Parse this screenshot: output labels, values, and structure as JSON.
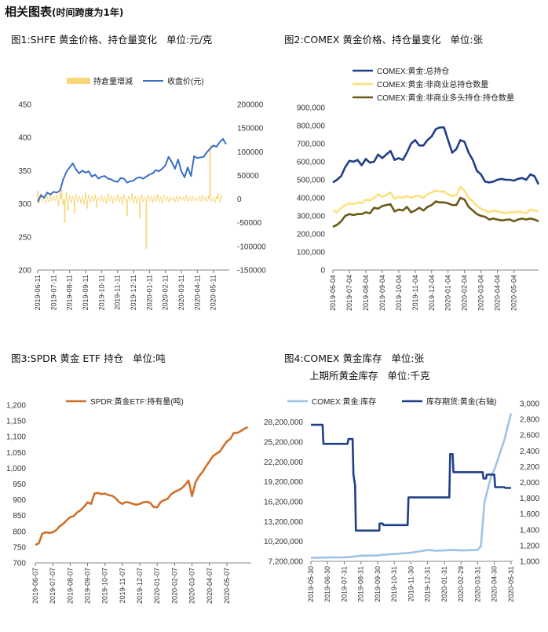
{
  "page": {
    "title": "相关图表",
    "title_note": "(时间跨度为1年)"
  },
  "colors": {
    "blue": "#3A6FC4",
    "navy": "#1F3F88",
    "gold": "#F8D77A",
    "yellow": "#FCE27C",
    "olive": "#6B5A16",
    "orange": "#D0702A",
    "lightblue": "#9DC3E6"
  },
  "captions": {
    "c1": "图1:SHFE 黄金价格、持仓量变化   单位:元/克",
    "c2": "图2:COMEX 黄金价格、持仓量变化   单位:张",
    "c3": "图3:SPDR 黄金 ETF 持仓   单位:吨",
    "c4a": "图4:COMEX 黄金库存   单位:张",
    "c4b": "上期所黄金库存   单位:千克"
  },
  "chart_data": [
    {
      "id": "shfe",
      "type": "line",
      "legend": [
        "持倉量增減",
        "收盘价(元)"
      ],
      "x_ticks": [
        "2019-06-11",
        "2019-07-11",
        "2019-08-11",
        "2019-09-11",
        "2019-10-11",
        "2019-11-11",
        "2019-12-11",
        "2020-01-11",
        "2020-02-11",
        "2020-03-11",
        "2020-04-11",
        "2020-05-11"
      ],
      "y_left_ticks": [
        "200",
        "250",
        "300",
        "350",
        "400",
        "450"
      ],
      "y_right_ticks": [
        "-150000",
        "-100000",
        "-50000",
        "0",
        "50000",
        "100000",
        "150000",
        "200000"
      ],
      "ylim_left": [
        200,
        450
      ],
      "ylim_right": [
        -150000,
        200000
      ],
      "x_range": [
        0,
        12
      ],
      "bars_x": [
        0.0,
        0.1,
        0.2,
        0.3,
        0.4,
        0.5,
        0.6,
        0.7,
        0.8,
        0.9,
        1.0,
        1.1,
        1.2,
        1.3,
        1.4,
        1.5,
        1.6,
        1.7,
        1.8,
        1.9,
        2.0,
        2.1,
        2.2,
        2.3,
        2.4,
        2.5,
        2.6,
        2.7,
        2.8,
        2.9,
        3.0,
        3.1,
        3.2,
        3.3,
        3.4,
        3.5,
        3.6,
        3.7,
        3.8,
        3.9,
        4.0,
        4.1,
        4.2,
        4.3,
        4.4,
        4.5,
        4.6,
        4.7,
        4.8,
        4.9,
        5.0,
        5.1,
        5.2,
        5.3,
        5.4,
        5.5,
        5.6,
        5.7,
        5.8,
        5.9,
        6.0,
        6.1,
        6.2,
        6.3,
        6.4,
        6.5,
        6.6,
        6.7,
        6.8,
        6.9,
        7.0,
        7.1,
        7.2,
        7.3,
        7.4,
        7.5,
        7.6,
        7.7,
        7.8,
        7.9,
        8.0,
        8.1,
        8.2,
        8.3,
        8.4,
        8.5,
        8.6,
        8.7,
        8.8,
        8.9,
        9.0,
        9.1,
        9.2,
        9.3,
        9.4,
        9.5,
        9.6,
        9.7,
        9.8,
        9.9,
        10.0,
        10.1,
        10.2,
        10.3,
        10.4,
        10.5,
        10.6,
        10.7,
        10.8,
        10.9,
        11.0,
        11.1,
        11.2,
        11.3,
        11.4,
        11.5,
        11.6,
        11.7
      ],
      "bars_values": [
        18000,
        -10000,
        12000,
        -5000,
        8000,
        -8000,
        5000,
        -6000,
        10000,
        -4000,
        6000,
        -3000,
        9000,
        -15000,
        12000,
        20000,
        -12000,
        -50000,
        15000,
        -25000,
        8000,
        -8000,
        6000,
        -30000,
        10000,
        -6000,
        7000,
        -9000,
        5000,
        -12000,
        14000,
        -20000,
        9000,
        -7000,
        6000,
        -5000,
        10000,
        -18000,
        4000,
        -4000,
        8000,
        -6000,
        5000,
        -9000,
        12000,
        -5000,
        7000,
        -10000,
        6000,
        -4000,
        9000,
        -7000,
        5000,
        -12000,
        10000,
        -3000,
        -35000,
        6000,
        -5000,
        12000,
        -8000,
        7000,
        -10000,
        5000,
        -40000,
        9000,
        -6000,
        4000,
        -105000,
        8000,
        -4000,
        6000,
        -8000,
        7000,
        -5000,
        10000,
        -6000,
        5000,
        -9000,
        8000,
        -4000,
        6000,
        -7000,
        5000,
        -3000,
        4000,
        -6000,
        7000,
        -5000,
        6000,
        -3000,
        5000,
        -4000,
        8000,
        -6000,
        5000,
        -5000,
        7000,
        -4000,
        4000,
        -3000,
        6000,
        -5000,
        8000,
        -4000,
        5000,
        -6000,
        7000,
        115000,
        -5000,
        4000,
        -8000,
        6000,
        12000,
        -6000,
        10000
      ],
      "line_x": [
        0.0,
        0.2,
        0.4,
        0.6,
        0.8,
        1.0,
        1.2,
        1.4,
        1.6,
        1.8,
        2.0,
        2.2,
        2.4,
        2.6,
        2.8,
        3.0,
        3.2,
        3.4,
        3.6,
        3.8,
        4.0,
        4.2,
        4.4,
        4.6,
        4.8,
        5.0,
        5.2,
        5.4,
        5.6,
        5.8,
        6.0,
        6.2,
        6.4,
        6.6,
        6.8,
        7.0,
        7.2,
        7.4,
        7.6,
        7.8,
        8.0,
        8.2,
        8.4,
        8.6,
        8.8,
        9.0,
        9.2,
        9.4,
        9.6,
        9.8,
        10.0,
        10.2,
        10.4,
        10.6,
        10.8,
        11.0,
        11.2,
        11.4,
        11.6,
        11.8
      ],
      "line_y": [
        303,
        313,
        309,
        317,
        314,
        318,
        317,
        320,
        337,
        348,
        355,
        361,
        352,
        346,
        350,
        347,
        349,
        341,
        344,
        338,
        341,
        342,
        338,
        337,
        334,
        333,
        339,
        338,
        332,
        334,
        335,
        339,
        340,
        338,
        341,
        344,
        346,
        351,
        349,
        353,
        358,
        371,
        363,
        353,
        367,
        349,
        340,
        355,
        342,
        372,
        369,
        370,
        371,
        378,
        383,
        388,
        386,
        393,
        398,
        390
      ]
    },
    {
      "id": "comex",
      "type": "line",
      "legend": [
        "COMEX:黄金:总持仓",
        "COMEX:黄金:非商业总持仓数量",
        "COMEX:黄金:非商业多头持仓:持仓数量"
      ],
      "x_ticks": [
        "2019-06-04",
        "2019-07-04",
        "2019-08-04",
        "2019-09-04",
        "2019-10-04",
        "2019-11-04",
        "2019-12-04",
        "2020-01-04",
        "2020-02-04",
        "2020-03-04",
        "2020-04-04",
        "2020-05-04"
      ],
      "y_ticks": [
        "0",
        "100,000",
        "200,000",
        "300,000",
        "400,000",
        "500,000",
        "600,000",
        "700,000",
        "800,000",
        "900,000"
      ],
      "ylim": [
        0,
        900000
      ],
      "x_range": [
        0,
        12.5
      ],
      "x": [
        0.0,
        0.25,
        0.5,
        0.75,
        1.0,
        1.25,
        1.5,
        1.75,
        2.0,
        2.25,
        2.5,
        2.75,
        3.0,
        3.25,
        3.5,
        3.75,
        4.0,
        4.25,
        4.5,
        4.75,
        5.0,
        5.25,
        5.5,
        5.75,
        6.0,
        6.25,
        6.5,
        6.75,
        7.0,
        7.25,
        7.5,
        7.75,
        8.0,
        8.25,
        8.5,
        8.75,
        9.0,
        9.25,
        9.5,
        9.75,
        10.0,
        10.25,
        10.5,
        10.75,
        11.0,
        11.25,
        11.5,
        11.75,
        12.0,
        12.25,
        12.5
      ],
      "series": [
        {
          "name": "COMEX:黄金:总持仓",
          "values": [
            485000,
            500000,
            520000,
            570000,
            605000,
            600000,
            610000,
            580000,
            615000,
            595000,
            600000,
            640000,
            620000,
            640000,
            660000,
            610000,
            620000,
            610000,
            650000,
            700000,
            720000,
            690000,
            690000,
            720000,
            740000,
            780000,
            790000,
            790000,
            720000,
            650000,
            670000,
            720000,
            710000,
            650000,
            610000,
            550000,
            530000,
            490000,
            485000,
            490000,
            500000,
            505000,
            500000,
            500000,
            495000,
            505000,
            510000,
            500000,
            530000,
            520000,
            475000
          ]
        },
        {
          "name": "COMEX:黄金:非商业总持仓数量",
          "values": [
            330000,
            320000,
            345000,
            360000,
            370000,
            365000,
            375000,
            370000,
            390000,
            385000,
            400000,
            420000,
            405000,
            415000,
            430000,
            395000,
            405000,
            400000,
            410000,
            400000,
            410000,
            410000,
            400000,
            420000,
            430000,
            440000,
            435000,
            435000,
            420000,
            410000,
            415000,
            460000,
            440000,
            400000,
            380000,
            355000,
            340000,
            330000,
            320000,
            330000,
            325000,
            320000,
            315000,
            320000,
            320000,
            325000,
            320000,
            315000,
            335000,
            330000,
            325000
          ]
        },
        {
          "name": "COMEX:黄金:非商业多头持仓:持仓数量",
          "values": [
            240000,
            250000,
            270000,
            300000,
            310000,
            305000,
            310000,
            310000,
            320000,
            315000,
            345000,
            340000,
            355000,
            360000,
            365000,
            325000,
            335000,
            330000,
            350000,
            320000,
            330000,
            345000,
            330000,
            350000,
            360000,
            380000,
            375000,
            375000,
            370000,
            360000,
            360000,
            400000,
            390000,
            350000,
            330000,
            310000,
            300000,
            295000,
            280000,
            285000,
            280000,
            275000,
            278000,
            280000,
            270000,
            280000,
            285000,
            280000,
            285000,
            280000,
            270000
          ]
        }
      ]
    },
    {
      "id": "spdr",
      "type": "line",
      "legend": [
        "SPDR:黄金ETF:持有量(吨)"
      ],
      "x_ticks": [
        "2019-06-07",
        "2019-07-07",
        "2019-08-07",
        "2019-09-07",
        "2019-10-07",
        "2019-11-07",
        "2019-12-07",
        "2020-01-07",
        "2020-02-07",
        "2020-03-07",
        "2020-04-07",
        "2020-05-07"
      ],
      "y_ticks": [
        "700",
        "750",
        "800",
        "850",
        "900",
        "950",
        "1,000",
        "1,050",
        "1,100",
        "1,150",
        "1,200"
      ],
      "ylim": [
        700,
        1200
      ],
      "x_range": [
        0,
        12.4
      ],
      "x": [
        0.0,
        0.2,
        0.4,
        0.6,
        0.8,
        1.0,
        1.2,
        1.4,
        1.6,
        1.8,
        2.0,
        2.2,
        2.4,
        2.6,
        2.8,
        3.0,
        3.2,
        3.4,
        3.6,
        3.8,
        4.0,
        4.2,
        4.4,
        4.6,
        4.8,
        5.0,
        5.2,
        5.4,
        5.6,
        5.8,
        6.0,
        6.2,
        6.4,
        6.6,
        6.8,
        7.0,
        7.2,
        7.4,
        7.6,
        7.8,
        8.0,
        8.2,
        8.4,
        8.6,
        8.8,
        9.0,
        9.2,
        9.4,
        9.6,
        9.8,
        10.0,
        10.2,
        10.4,
        10.6,
        10.8,
        11.0,
        11.2,
        11.4,
        11.6,
        11.8,
        12.0,
        12.2
      ],
      "values": [
        757,
        762,
        793,
        797,
        795,
        797,
        804,
        816,
        824,
        835,
        845,
        848,
        860,
        867,
        878,
        892,
        887,
        920,
        922,
        918,
        920,
        915,
        913,
        906,
        893,
        887,
        893,
        891,
        887,
        884,
        887,
        892,
        894,
        890,
        877,
        876,
        893,
        899,
        903,
        918,
        925,
        930,
        936,
        947,
        961,
        912,
        955,
        975,
        988,
        1006,
        1022,
        1038,
        1046,
        1053,
        1070,
        1085,
        1093,
        1112,
        1112,
        1118,
        1125,
        1130
      ]
    },
    {
      "id": "inventory",
      "type": "line",
      "legend": [
        "COMEX:黄金:库存",
        "库存期货:黄金(右轴)"
      ],
      "x_ticks": [
        "2019-05-30",
        "2019-06-30",
        "2019-07-31",
        "2019-08-31",
        "2019-09-30",
        "2019-10-31",
        "2019-11-30",
        "2019-12-31",
        "2020-01-31",
        "2020-02-29",
        "2020-03-31",
        "2020-04-30",
        "2020-05-31"
      ],
      "y_left_ticks": [
        "7,200,000",
        "10,200,000",
        "13,200,000",
        "16,200,000",
        "19,200,000",
        "22,200,000",
        "25,200,000",
        "28,200,000"
      ],
      "y_right_ticks": [
        "1,000",
        "1,200",
        "1,400",
        "1,600",
        "1,800",
        "2,000",
        "2,200",
        "2,400",
        "2,600",
        "2,800",
        "3,000"
      ],
      "ylim_left": [
        7200000,
        31000000
      ],
      "ylim_right": [
        1000,
        3000
      ],
      "x_range": [
        0,
        12.1
      ],
      "series": [
        {
          "name": "COMEX:黄金:库存",
          "axis": "left",
          "x": [
            0,
            1,
            2,
            2.5,
            3,
            4,
            4.3,
            5,
            6,
            7,
            7.5,
            8,
            8.5,
            9,
            10,
            10.2,
            10.4,
            10.6,
            10.8,
            11,
            11.2,
            11.4,
            11.6,
            11.8,
            12
          ],
          "values": [
            7750000,
            7780000,
            7800000,
            7900000,
            8050000,
            8100000,
            8200000,
            8300000,
            8500000,
            8900000,
            8800000,
            8850000,
            8900000,
            8850000,
            8900000,
            9500000,
            16000000,
            18000000,
            20000000,
            21000000,
            22500000,
            24000000,
            25500000,
            27500000,
            29500000
          ]
        },
        {
          "name": "库存期货:黄金(右轴)",
          "axis": "right",
          "x": [
            0,
            0.7,
            0.75,
            2.2,
            2.25,
            2.5,
            2.55,
            2.65,
            2.7,
            4.1,
            4.12,
            4.3,
            4.35,
            5.8,
            5.85,
            8.3,
            8.35,
            8.5,
            8.55,
            10.3,
            10.35,
            10.5,
            10.55,
            11.0,
            11.05,
            11.6,
            11.65,
            12.0
          ],
          "values": [
            2730,
            2730,
            2490,
            2490,
            2550,
            2550,
            2100,
            1960,
            1390,
            1390,
            1480,
            1480,
            1460,
            1460,
            1810,
            1810,
            2360,
            2360,
            2130,
            2130,
            2050,
            2050,
            2100,
            2100,
            1940,
            1940,
            1930,
            1930
          ]
        }
      ]
    }
  ]
}
